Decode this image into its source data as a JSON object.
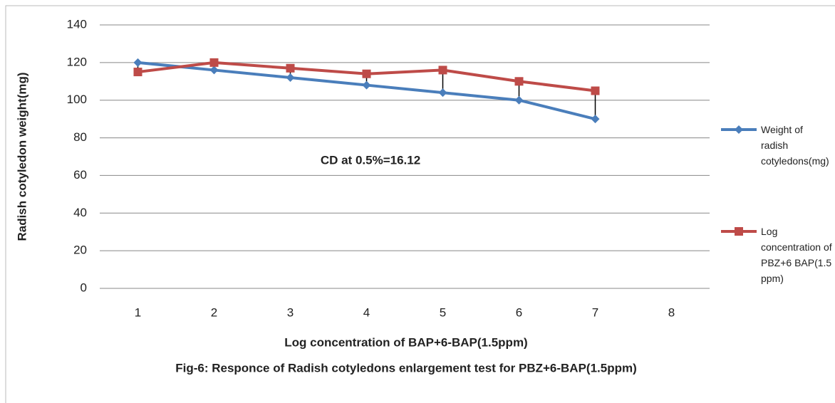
{
  "chart_data": {
    "type": "line",
    "y_label": "Radish cotyledon weight(mg)",
    "x_label": "Log concentration of BAP+6-BAP(1.5ppm)",
    "caption": "Fig-6: Responce of Radish cotyledons enlargement test for PBZ+6-BAP(1.5ppm)",
    "annotation": "CD at 0.5%=16.12",
    "categories": [
      "1",
      "2",
      "3",
      "4",
      "5",
      "6",
      "7",
      "8"
    ],
    "series": [
      {
        "name": "Weight of radish cotyledons(mg)",
        "color": "#4a7ebb",
        "marker": "diamond",
        "values": [
          120,
          116,
          112,
          108,
          104,
          100,
          90,
          null
        ]
      },
      {
        "name": "Log concentration of PBZ+6 BAP(1.5 ppm)",
        "color": "#be4b48",
        "marker": "square",
        "values": [
          115,
          120,
          117,
          114,
          116,
          110,
          105,
          null
        ]
      }
    ],
    "high_low_lines": true,
    "ylim": [
      0,
      140
    ],
    "yticks": [
      0,
      20,
      40,
      60,
      80,
      100,
      120,
      140
    ],
    "grid": true,
    "legend": "right"
  }
}
